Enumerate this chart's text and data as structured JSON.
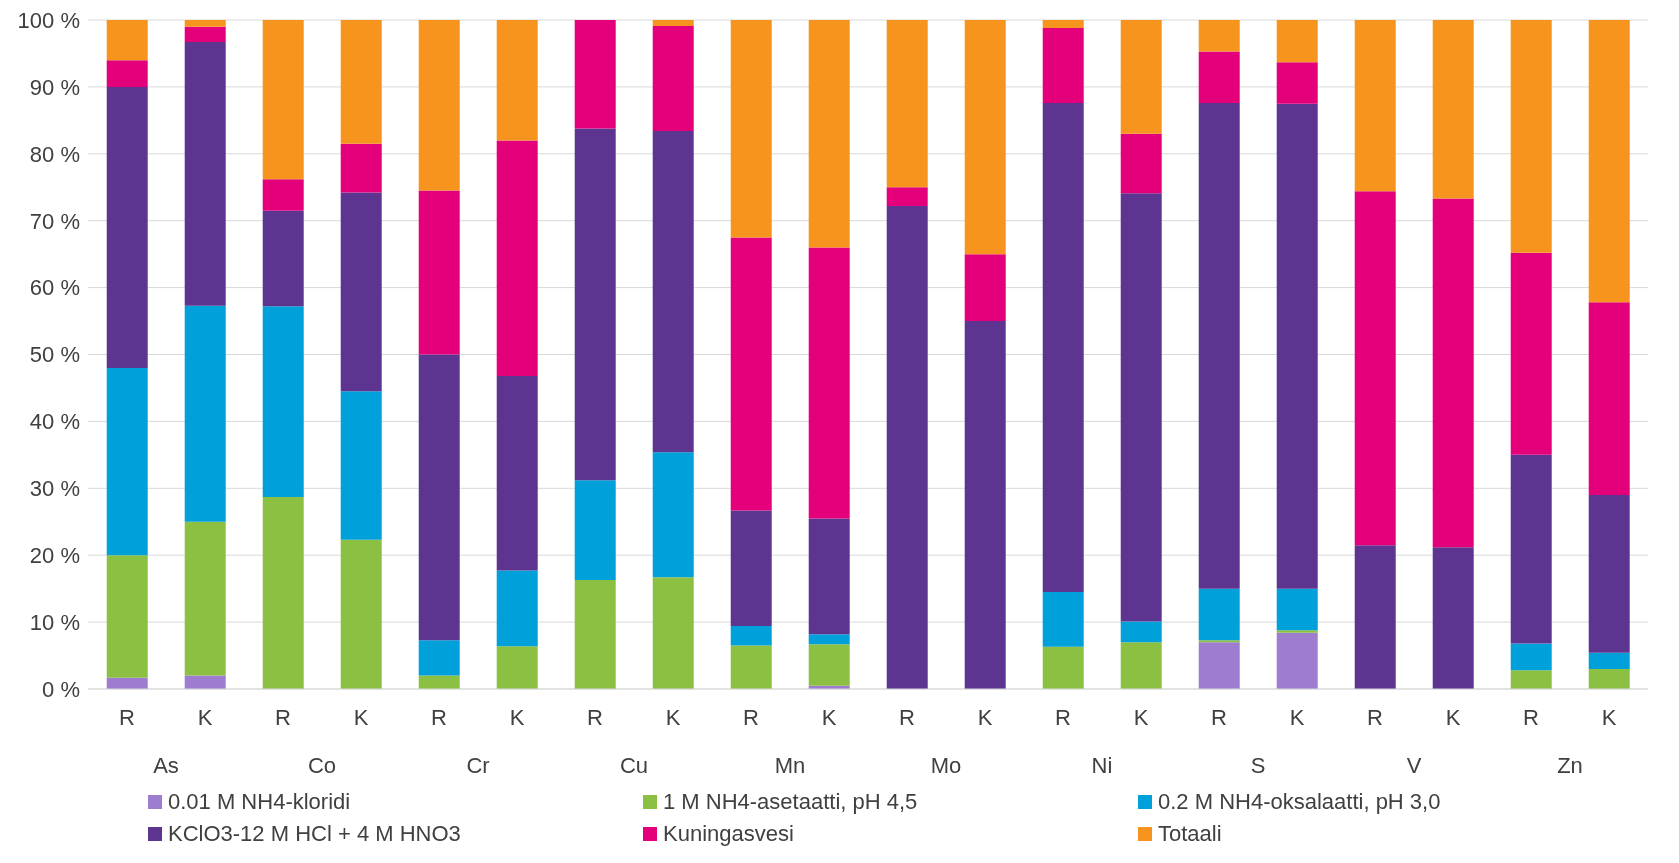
{
  "chart_data": {
    "type": "bar",
    "stacked": true,
    "categories": [
      "R",
      "K",
      "R",
      "K",
      "R",
      "K",
      "R",
      "K",
      "R",
      "K",
      "R",
      "K",
      "R",
      "K",
      "R",
      "K",
      "R",
      "K",
      "R",
      "K"
    ],
    "annotations": [
      "As",
      "Co",
      "Cr",
      "Cu",
      "Mn",
      "Mo",
      "Ni",
      "S",
      "V",
      "Zn"
    ],
    "series": [
      {
        "name": "0.01 M NH4-kloridi",
        "color": "#9e7dd0",
        "values": [
          1.7,
          2,
          0,
          0,
          0,
          0,
          0,
          0,
          0,
          0.5,
          0,
          0,
          0,
          0,
          7,
          8.4,
          0,
          0,
          0,
          0
        ]
      },
      {
        "name": "1 M NH4-asetaatti, pH 4,5",
        "color": "#8cc043",
        "values": [
          18.3,
          23,
          28.7,
          22.3,
          2,
          6.4,
          16.3,
          16.7,
          6.5,
          6.2,
          0,
          0,
          6.3,
          7,
          0.3,
          0.4,
          0,
          0,
          2.8,
          3
        ]
      },
      {
        "name": "0.2 M NH4-oksalaatti, pH 3,0",
        "color": "#00a0db",
        "values": [
          28,
          32.3,
          28.5,
          22.2,
          5.3,
          11.3,
          14.9,
          18.7,
          2.9,
          1.5,
          0,
          0,
          8.2,
          3.1,
          7.7,
          6.2,
          0,
          0,
          4,
          2.4
        ]
      },
      {
        "name": "KClO3-12 M HCl + 4 M HNO3",
        "color": "#5d3591",
        "values": [
          42,
          39.4,
          14.3,
          29.7,
          42.7,
          29.1,
          52.6,
          48,
          17.3,
          17.3,
          72.2,
          55,
          73.1,
          64,
          72.6,
          72.5,
          21.5,
          21.2,
          28.2,
          23.6
        ]
      },
      {
        "name": "Kuningasvesi",
        "color": "#e4007b",
        "values": [
          4,
          2.3,
          4.7,
          7.3,
          24.5,
          35.2,
          16.2,
          15.7,
          40.8,
          40.5,
          2.8,
          10,
          11.2,
          8.9,
          7.7,
          6.2,
          52.9,
          52.1,
          30.2,
          28.8
        ]
      },
      {
        "name": "Totaali",
        "color": "#f7941d",
        "values": [
          6,
          1,
          23.8,
          18.5,
          25.5,
          18,
          0,
          0.9,
          32.5,
          34,
          25,
          35,
          1.2,
          17,
          4.7,
          6.3,
          25.6,
          26.7,
          34.8,
          42.2
        ]
      }
    ],
    "ylim": [
      0,
      100
    ],
    "yticks": [
      {
        "value": 0,
        "label": "0 %"
      },
      {
        "value": 10,
        "label": "10 %"
      },
      {
        "value": 20,
        "label": "20 %"
      },
      {
        "value": 30,
        "label": "30 %"
      },
      {
        "value": 40,
        "label": "40 %"
      },
      {
        "value": 50,
        "label": "50 %"
      },
      {
        "value": 60,
        "label": "60 %"
      },
      {
        "value": 70,
        "label": "70 %"
      },
      {
        "value": 80,
        "label": "80 %"
      },
      {
        "value": 90,
        "label": "90 %"
      },
      {
        "value": 100,
        "label": "100 %"
      }
    ],
    "grid": "y",
    "legend": "bottom"
  }
}
